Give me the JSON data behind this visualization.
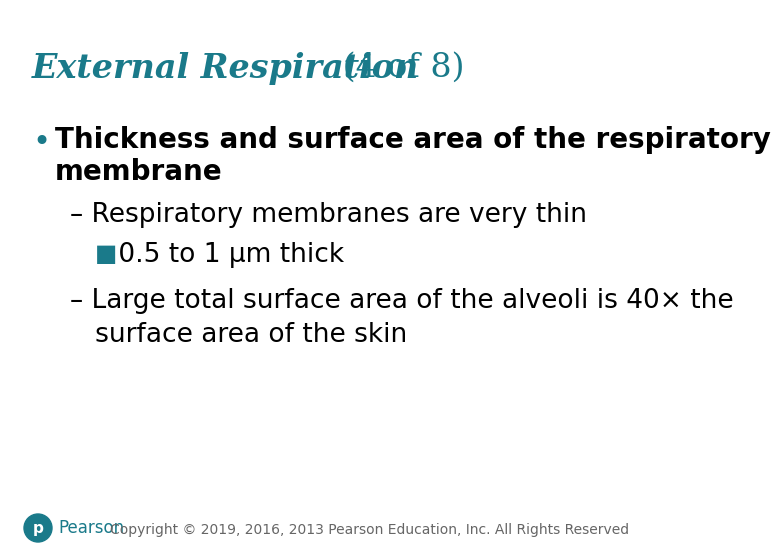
{
  "title_main": "External Respiration",
  "title_suffix": " (4 of 8)",
  "title_color": "#1a7a8a",
  "background_color": "#ffffff",
  "bullet_color": "#1a7a8a",
  "bullet_text_color": "#000000",
  "square_color": "#1a7a8a",
  "bullet1_line1": "Thickness and surface area of the respiratory",
  "bullet1_line2": "membrane",
  "sub1_text": "– Respiratory membranes are very thin",
  "sub2_prefix": "■",
  "sub2_text": " 0.5 to 1 μm thick",
  "sub3_line1": "– Large total surface area of the alveoli is 40× the",
  "sub3_line2": "   surface area of the skin",
  "copyright_text": "Copyright © 2019, 2016, 2013 Pearson Education, Inc. All Rights Reserved",
  "pearson_label": "Pearson",
  "pearson_color": "#1a7a8a",
  "footer_text_color": "#666666",
  "title_fontsize": 24,
  "bullet_fontsize": 20,
  "sub_fontsize": 19,
  "footer_fontsize": 10
}
